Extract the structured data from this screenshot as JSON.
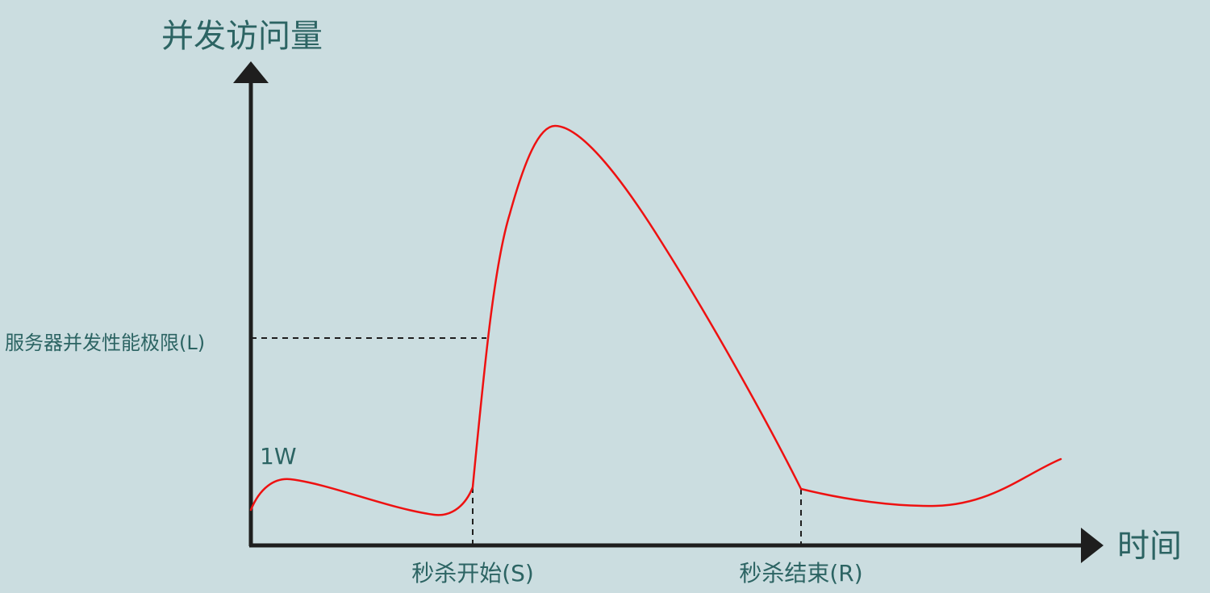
{
  "diagram": {
    "y_axis_label": "并发访问量",
    "x_axis_label": "时间",
    "limit_label": "服务器并发性能极限(L)",
    "baseline_label": "1W",
    "start_label": "秒杀开始(S)",
    "end_label": "秒杀结束(R)"
  },
  "colors": {
    "background": "#cbdde0",
    "text": "#2c6463",
    "axis": "#1e1e1e",
    "curve": "#ee1111",
    "guide": "#1e1e1e"
  }
}
